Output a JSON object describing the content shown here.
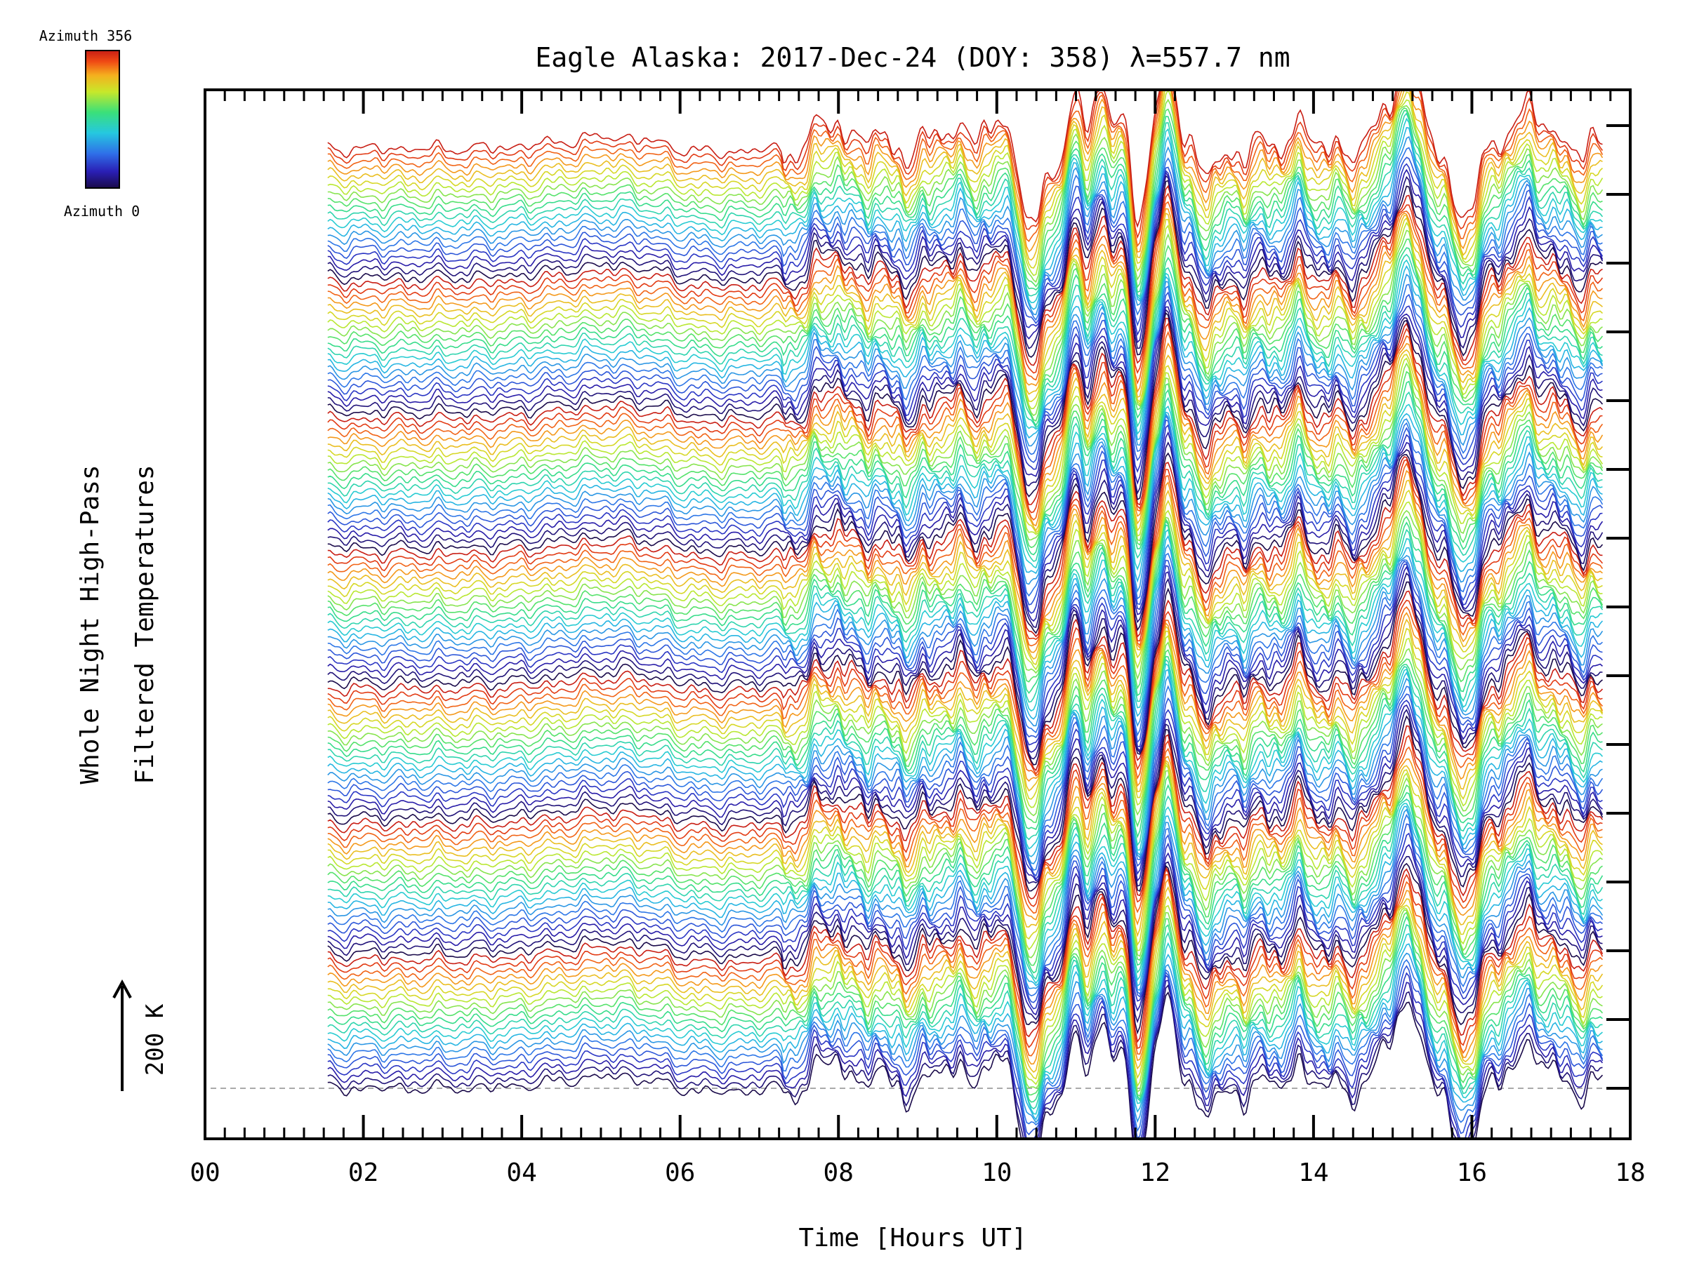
{
  "chart_data": {
    "type": "line",
    "title": "Eagle Alaska: 2017-Dec-24 (DOY: 358) λ=557.7 nm",
    "xlabel": "Time [Hours UT]",
    "ylabel_line1": "Whole Night High-Pass",
    "ylabel_line2": "Filtered Temperatures",
    "xlim": [
      0,
      18
    ],
    "x_ticks": [
      "00",
      "02",
      "04",
      "06",
      "08",
      "10",
      "12",
      "14",
      "16",
      "18"
    ],
    "data_x_range": [
      1.55,
      17.65
    ],
    "colorbar": {
      "top_label": "Azimuth 356",
      "bottom_label": "Azimuth 0",
      "colormap": [
        "#1a0a4a",
        "#2a1fb5",
        "#2f6fe8",
        "#25c8e0",
        "#3ae07a",
        "#c8e82a",
        "#f5b01e",
        "#f04a14",
        "#c81e14"
      ]
    },
    "scale_bar_label": "200 K",
    "baseline_dashed": true,
    "series_count": 140,
    "stack_groups": 7,
    "traces_per_group": 20,
    "colors": {
      "axes": "#000000",
      "baseline": "#aaaaaa"
    }
  }
}
